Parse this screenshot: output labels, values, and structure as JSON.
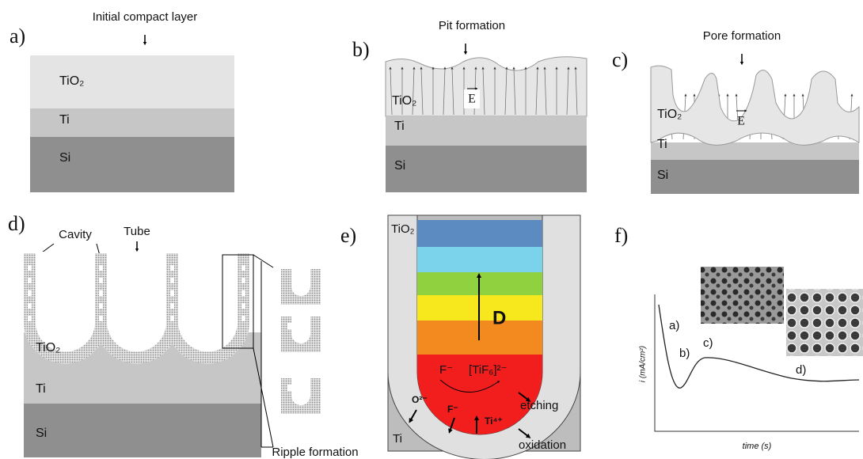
{
  "panels": [
    {
      "label": "a)",
      "caption": "Initial compact layer",
      "layers": [
        "TiO₂",
        "Ti",
        "Si"
      ]
    },
    {
      "label": "b)",
      "caption": "Pit formation",
      "layers": [
        "TiO₂",
        "Ti",
        "Si"
      ],
      "field": "E"
    },
    {
      "label": "c)",
      "caption": "Pore formation",
      "layers": [
        "TiO₂",
        "Ti",
        "Si"
      ],
      "field": "E"
    },
    {
      "label": "d)",
      "annotations": [
        "Cavity",
        "Tube"
      ],
      "layers": [
        "TiO₂",
        "Ti",
        "Si"
      ],
      "caption": "Ripple formation"
    },
    {
      "label": "e)",
      "layers": [
        "TiO₂",
        "Ti"
      ],
      "arrow": "D",
      "species": [
        "F⁻",
        "[TiF₆]²⁻",
        "O²⁻",
        "F⁻",
        "Ti⁴⁺"
      ],
      "processes": [
        "etching",
        "oxidation"
      ]
    },
    {
      "label": "f)",
      "y_label": "i (mA/cm²)",
      "x_label": "time (s)",
      "stages": [
        "a)",
        "b)",
        "c)",
        "d)"
      ]
    }
  ]
}
